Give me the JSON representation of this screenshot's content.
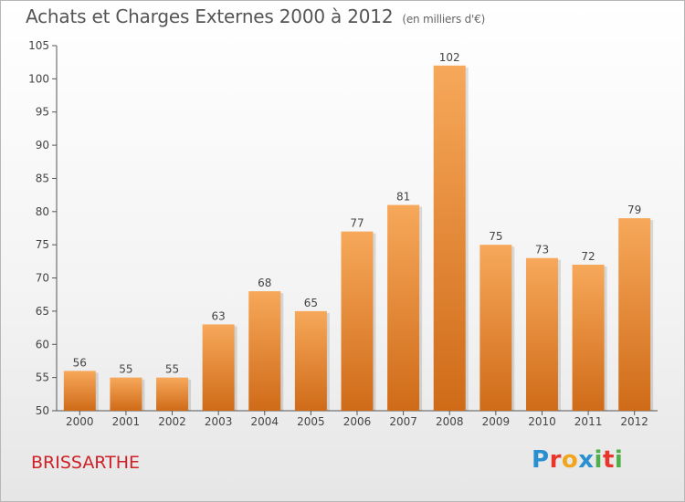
{
  "chart_data": {
    "type": "bar",
    "title": "Achats et Charges Externes 2000 à 2012",
    "unit_label": "(en milliers d'€)",
    "categories": [
      "2000",
      "2001",
      "2002",
      "2003",
      "2004",
      "2005",
      "2006",
      "2007",
      "2008",
      "2009",
      "2010",
      "2011",
      "2012"
    ],
    "values": [
      56,
      55,
      55,
      63,
      68,
      65,
      77,
      81,
      102,
      75,
      73,
      72,
      79
    ],
    "ylim": [
      50,
      105
    ],
    "yticks": [
      50,
      55,
      60,
      65,
      70,
      75,
      80,
      85,
      90,
      95,
      100,
      105
    ],
    "grid": false,
    "bar_color_top": "#f7a85a",
    "bar_color_bottom": "#cf6b18",
    "xlabel": "",
    "ylabel": ""
  },
  "footer": {
    "commune": "BRISSARTHE",
    "logo_letters": [
      {
        "ch": "P",
        "color": "#2a8fd0"
      },
      {
        "ch": "r",
        "color": "#e8362c"
      },
      {
        "ch": "o",
        "color": "#f0a51c"
      },
      {
        "ch": "x",
        "color": "#2a8fd0"
      },
      {
        "ch": "i",
        "color": "#4db04a"
      },
      {
        "ch": "t",
        "color": "#e8362c"
      },
      {
        "ch": "i",
        "color": "#4db04a"
      }
    ]
  }
}
